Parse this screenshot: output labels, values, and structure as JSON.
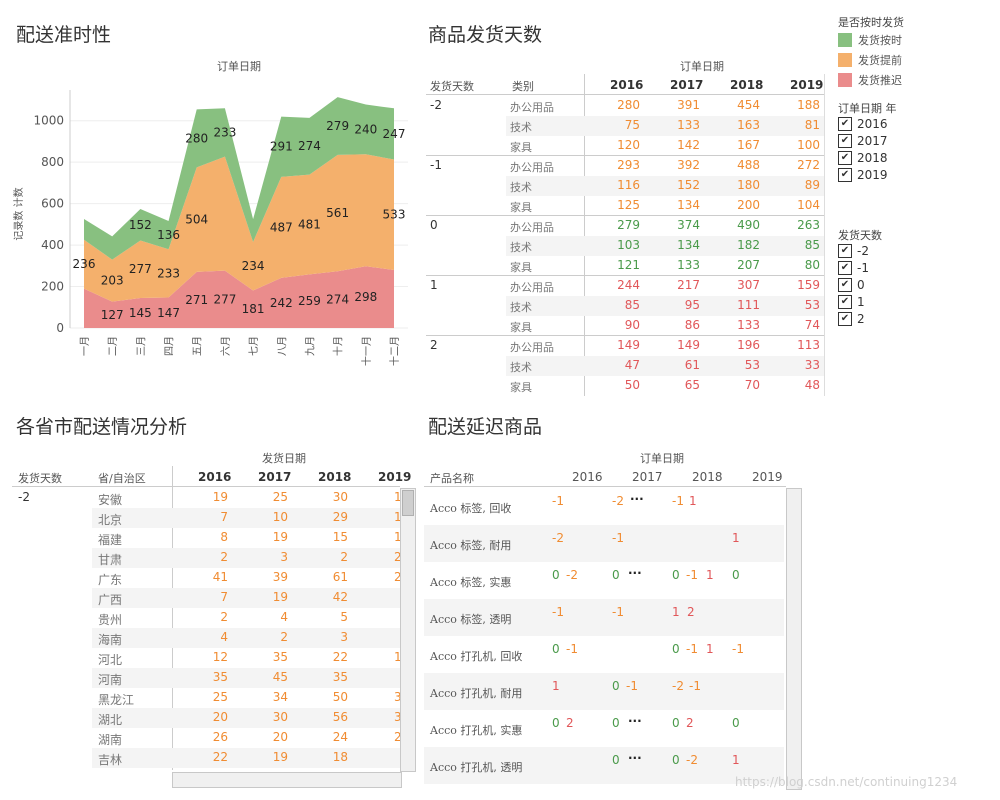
{
  "titles": {
    "ontime": "配送准时性",
    "shipdays": "商品发货天数",
    "province": "各省市配送情况分析",
    "delayed": "配送延迟商品"
  },
  "legend": {
    "title": "是否按时发货",
    "items": [
      {
        "label": "发货按时",
        "color": "#88c080"
      },
      {
        "label": "发货提前",
        "color": "#f4b06c"
      },
      {
        "label": "发货推迟",
        "color": "#ea8c8c"
      }
    ]
  },
  "year_filter": {
    "title": "订单日期 年",
    "items": [
      "2016",
      "2017",
      "2018",
      "2019"
    ]
  },
  "days_filter": {
    "title": "发货天数",
    "items": [
      "-2",
      "-1",
      "0",
      "1",
      "2"
    ]
  },
  "chart_data": {
    "type": "area",
    "title": "订单日期",
    "ylabel": "记录数 计数",
    "ylim": [
      0,
      1100
    ],
    "yticks": [
      0,
      200,
      400,
      600,
      800,
      1000
    ],
    "categories": [
      "一月",
      "二月",
      "三月",
      "四月",
      "五月",
      "六月",
      "七月",
      "八月",
      "九月",
      "十月",
      "十一月",
      "十二月"
    ],
    "series": [
      {
        "name": "发货推迟",
        "color": "#ea8c8c",
        "values": [
          190,
          127,
          145,
          147,
          271,
          277,
          181,
          242,
          259,
          274,
          298,
          280
        ],
        "labels": [
          "",
          "127",
          "145",
          "147",
          "271",
          "277",
          "181",
          "242",
          "259",
          "274",
          "298",
          ""
        ]
      },
      {
        "name": "发货提前",
        "color": "#f4b06c",
        "values": [
          236,
          203,
          277,
          233,
          504,
          550,
          234,
          487,
          481,
          561,
          540,
          533
        ],
        "labels": [
          "236",
          "203",
          "277",
          "233",
          "504",
          "",
          "234",
          "487",
          "481",
          "561",
          "",
          "533"
        ]
      },
      {
        "name": "发货按时",
        "color": "#88c080",
        "values": [
          100,
          112,
          152,
          136,
          280,
          233,
          110,
          291,
          274,
          279,
          240,
          247
        ],
        "labels": [
          "",
          "",
          "152",
          "136",
          "280",
          "233",
          "",
          "291",
          "274",
          "279",
          "240",
          "247"
        ]
      }
    ]
  },
  "shipdays_table": {
    "col_title": "订单日期",
    "row_headers": [
      "发货天数",
      "类别"
    ],
    "years": [
      "2016",
      "2017",
      "2018",
      "2019"
    ],
    "groups": [
      {
        "day": "-2",
        "color": "org",
        "rows": [
          {
            "cat": "办公用品",
            "vals": [
              "280",
              "391",
              "454",
              "188"
            ]
          },
          {
            "cat": "技术",
            "vals": [
              "75",
              "133",
              "163",
              "81"
            ]
          },
          {
            "cat": "家具",
            "vals": [
              "120",
              "142",
              "167",
              "100"
            ]
          }
        ]
      },
      {
        "day": "-1",
        "color": "org",
        "rows": [
          {
            "cat": "办公用品",
            "vals": [
              "293",
              "392",
              "488",
              "272"
            ]
          },
          {
            "cat": "技术",
            "vals": [
              "116",
              "152",
              "180",
              "89"
            ]
          },
          {
            "cat": "家具",
            "vals": [
              "125",
              "134",
              "200",
              "104"
            ]
          }
        ]
      },
      {
        "day": "0",
        "color": "grn",
        "rows": [
          {
            "cat": "办公用品",
            "vals": [
              "279",
              "374",
              "490",
              "263"
            ]
          },
          {
            "cat": "技术",
            "vals": [
              "103",
              "134",
              "182",
              "85"
            ]
          },
          {
            "cat": "家具",
            "vals": [
              "121",
              "133",
              "207",
              "80"
            ]
          }
        ]
      },
      {
        "day": "1",
        "color": "red",
        "rows": [
          {
            "cat": "办公用品",
            "vals": [
              "244",
              "217",
              "307",
              "159"
            ]
          },
          {
            "cat": "技术",
            "vals": [
              "85",
              "95",
              "111",
              "53"
            ]
          },
          {
            "cat": "家具",
            "vals": [
              "90",
              "86",
              "133",
              "74"
            ]
          }
        ]
      },
      {
        "day": "2",
        "color": "red",
        "rows": [
          {
            "cat": "办公用品",
            "vals": [
              "149",
              "149",
              "196",
              "113"
            ]
          },
          {
            "cat": "技术",
            "vals": [
              "47",
              "61",
              "53",
              "33"
            ]
          },
          {
            "cat": "家具",
            "vals": [
              "50",
              "65",
              "70",
              "48"
            ]
          }
        ]
      }
    ]
  },
  "province_table": {
    "col_title": "发货天数",
    "day_header": "发货天数",
    "prov_header": "省/自治区",
    "year_header": "发货日期",
    "years": [
      "2016",
      "2017",
      "2018",
      "2019"
    ],
    "day": "-2",
    "rows": [
      {
        "name": "安徽",
        "vals": [
          "19",
          "25",
          "30",
          "1"
        ]
      },
      {
        "name": "北京",
        "vals": [
          "7",
          "10",
          "29",
          "1"
        ]
      },
      {
        "name": "福建",
        "vals": [
          "8",
          "19",
          "15",
          "1"
        ]
      },
      {
        "name": "甘肃",
        "vals": [
          "2",
          "3",
          "2",
          "2"
        ]
      },
      {
        "name": "广东",
        "vals": [
          "41",
          "39",
          "61",
          "2"
        ]
      },
      {
        "name": "广西",
        "vals": [
          "7",
          "19",
          "42",
          ""
        ]
      },
      {
        "name": "贵州",
        "vals": [
          "2",
          "4",
          "5",
          ""
        ]
      },
      {
        "name": "海南",
        "vals": [
          "4",
          "2",
          "3",
          ""
        ]
      },
      {
        "name": "河北",
        "vals": [
          "12",
          "35",
          "22",
          "1"
        ]
      },
      {
        "name": "河南",
        "vals": [
          "35",
          "45",
          "35",
          ""
        ]
      },
      {
        "name": "黑龙江",
        "vals": [
          "25",
          "34",
          "50",
          "3"
        ]
      },
      {
        "name": "湖北",
        "vals": [
          "20",
          "30",
          "56",
          "3"
        ]
      },
      {
        "name": "湖南",
        "vals": [
          "26",
          "20",
          "24",
          "2"
        ]
      },
      {
        "name": "吉林",
        "vals": [
          "22",
          "19",
          "18",
          ""
        ]
      }
    ]
  },
  "delayed_table": {
    "col_title": "订单日期",
    "name_header": "产品名称",
    "years": [
      "2016",
      "2017",
      "2018",
      "2019"
    ],
    "rows": [
      {
        "name": "Acco 标签, 回收",
        "cells": [
          {
            "v": "-1",
            "c": "org",
            "x": 0
          },
          {
            "v": "-2",
            "c": "org",
            "x": 60
          },
          {
            "v": "···",
            "c": "dark",
            "x": 78
          },
          {
            "v": "-1",
            "c": "org",
            "x": 120
          },
          {
            "v": "1",
            "c": "red",
            "x": 137
          }
        ]
      },
      {
        "name": "Acco 标签, 耐用",
        "cells": [
          {
            "v": "-2",
            "c": "org",
            "x": 0
          },
          {
            "v": "-1",
            "c": "org",
            "x": 60
          },
          {
            "v": "1",
            "c": "red",
            "x": 180
          }
        ]
      },
      {
        "name": "Acco 标签, 实惠",
        "cells": [
          {
            "v": "0",
            "c": "grn",
            "x": 0
          },
          {
            "v": "-2",
            "c": "org",
            "x": 14
          },
          {
            "v": "0",
            "c": "grn",
            "x": 60
          },
          {
            "v": "···",
            "c": "dark",
            "x": 76
          },
          {
            "v": "0",
            "c": "grn",
            "x": 120
          },
          {
            "v": "-1",
            "c": "org",
            "x": 134
          },
          {
            "v": "1",
            "c": "red",
            "x": 154
          },
          {
            "v": "0",
            "c": "grn",
            "x": 180
          }
        ]
      },
      {
        "name": "Acco 标签, 透明",
        "cells": [
          {
            "v": "-1",
            "c": "org",
            "x": 0
          },
          {
            "v": "-1",
            "c": "org",
            "x": 60
          },
          {
            "v": "1",
            "c": "red",
            "x": 120
          },
          {
            "v": "2",
            "c": "red",
            "x": 135
          }
        ]
      },
      {
        "name": "Acco 打孔机, 回收",
        "cells": [
          {
            "v": "0",
            "c": "grn",
            "x": 0
          },
          {
            "v": "-1",
            "c": "org",
            "x": 14
          },
          {
            "v": "0",
            "c": "grn",
            "x": 120
          },
          {
            "v": "-1",
            "c": "org",
            "x": 134
          },
          {
            "v": "1",
            "c": "red",
            "x": 154
          },
          {
            "v": "-1",
            "c": "org",
            "x": 180
          }
        ]
      },
      {
        "name": "Acco 打孔机, 耐用",
        "cells": [
          {
            "v": "1",
            "c": "red",
            "x": 0
          },
          {
            "v": "0",
            "c": "grn",
            "x": 60
          },
          {
            "v": "-1",
            "c": "org",
            "x": 74
          },
          {
            "v": "-2",
            "c": "org",
            "x": 120
          },
          {
            "v": "-1",
            "c": "org",
            "x": 137
          }
        ]
      },
      {
        "name": "Acco 打孔机, 实惠",
        "cells": [
          {
            "v": "0",
            "c": "grn",
            "x": 0
          },
          {
            "v": "2",
            "c": "red",
            "x": 14
          },
          {
            "v": "0",
            "c": "grn",
            "x": 60
          },
          {
            "v": "···",
            "c": "dark",
            "x": 76
          },
          {
            "v": "0",
            "c": "grn",
            "x": 120
          },
          {
            "v": "2",
            "c": "red",
            "x": 134
          },
          {
            "v": "0",
            "c": "grn",
            "x": 180
          }
        ]
      },
      {
        "name": "Acco 打孔机, 透明",
        "cells": [
          {
            "v": "0",
            "c": "grn",
            "x": 60
          },
          {
            "v": "···",
            "c": "dark",
            "x": 76
          },
          {
            "v": "0",
            "c": "grn",
            "x": 120
          },
          {
            "v": "-2",
            "c": "org",
            "x": 134
          },
          {
            "v": "1",
            "c": "red",
            "x": 180
          }
        ]
      }
    ]
  },
  "watermark": "https://blog.csdn.net/continuing1234"
}
